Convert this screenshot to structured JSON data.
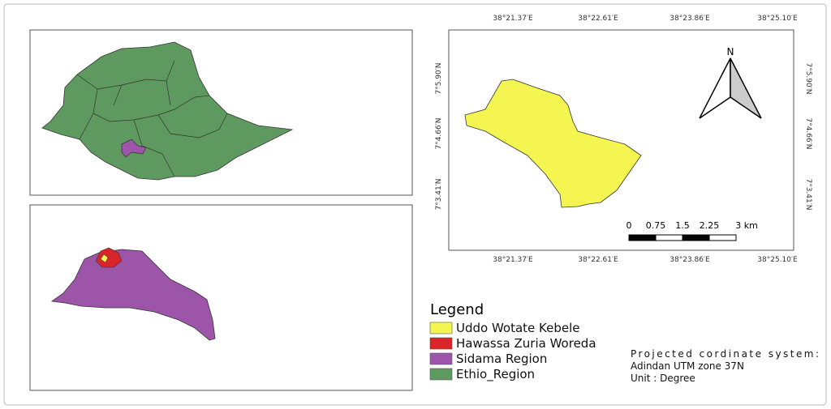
{
  "map": {
    "longitude_labels": [
      "38°21.37′E",
      "38°22.61′E",
      "38°23.86′E",
      "38°25.10′E"
    ],
    "latitude_labels": [
      "7°5.90′N",
      "7°4.66′N",
      "7°3.41′N"
    ],
    "north_label": "N",
    "scale_bar": {
      "labels": [
        "0",
        "0.75",
        "1.5",
        "2.25",
        "3 km"
      ]
    },
    "legend": {
      "title": "Legend",
      "items": [
        {
          "label": "Uddo Wotate Kebele",
          "color": "#f5f552"
        },
        {
          "label": "Hawassa Zuria Woreda",
          "color": "#d9242a"
        },
        {
          "label": "Sidama Region",
          "color": "#9c55a8"
        },
        {
          "label": "Ethio_Region",
          "color": "#5e9a60"
        }
      ]
    },
    "projection": [
      "Projected  cordinate  system:",
      "Adindan UTM zone 37N",
      "Unit : Degree"
    ]
  }
}
